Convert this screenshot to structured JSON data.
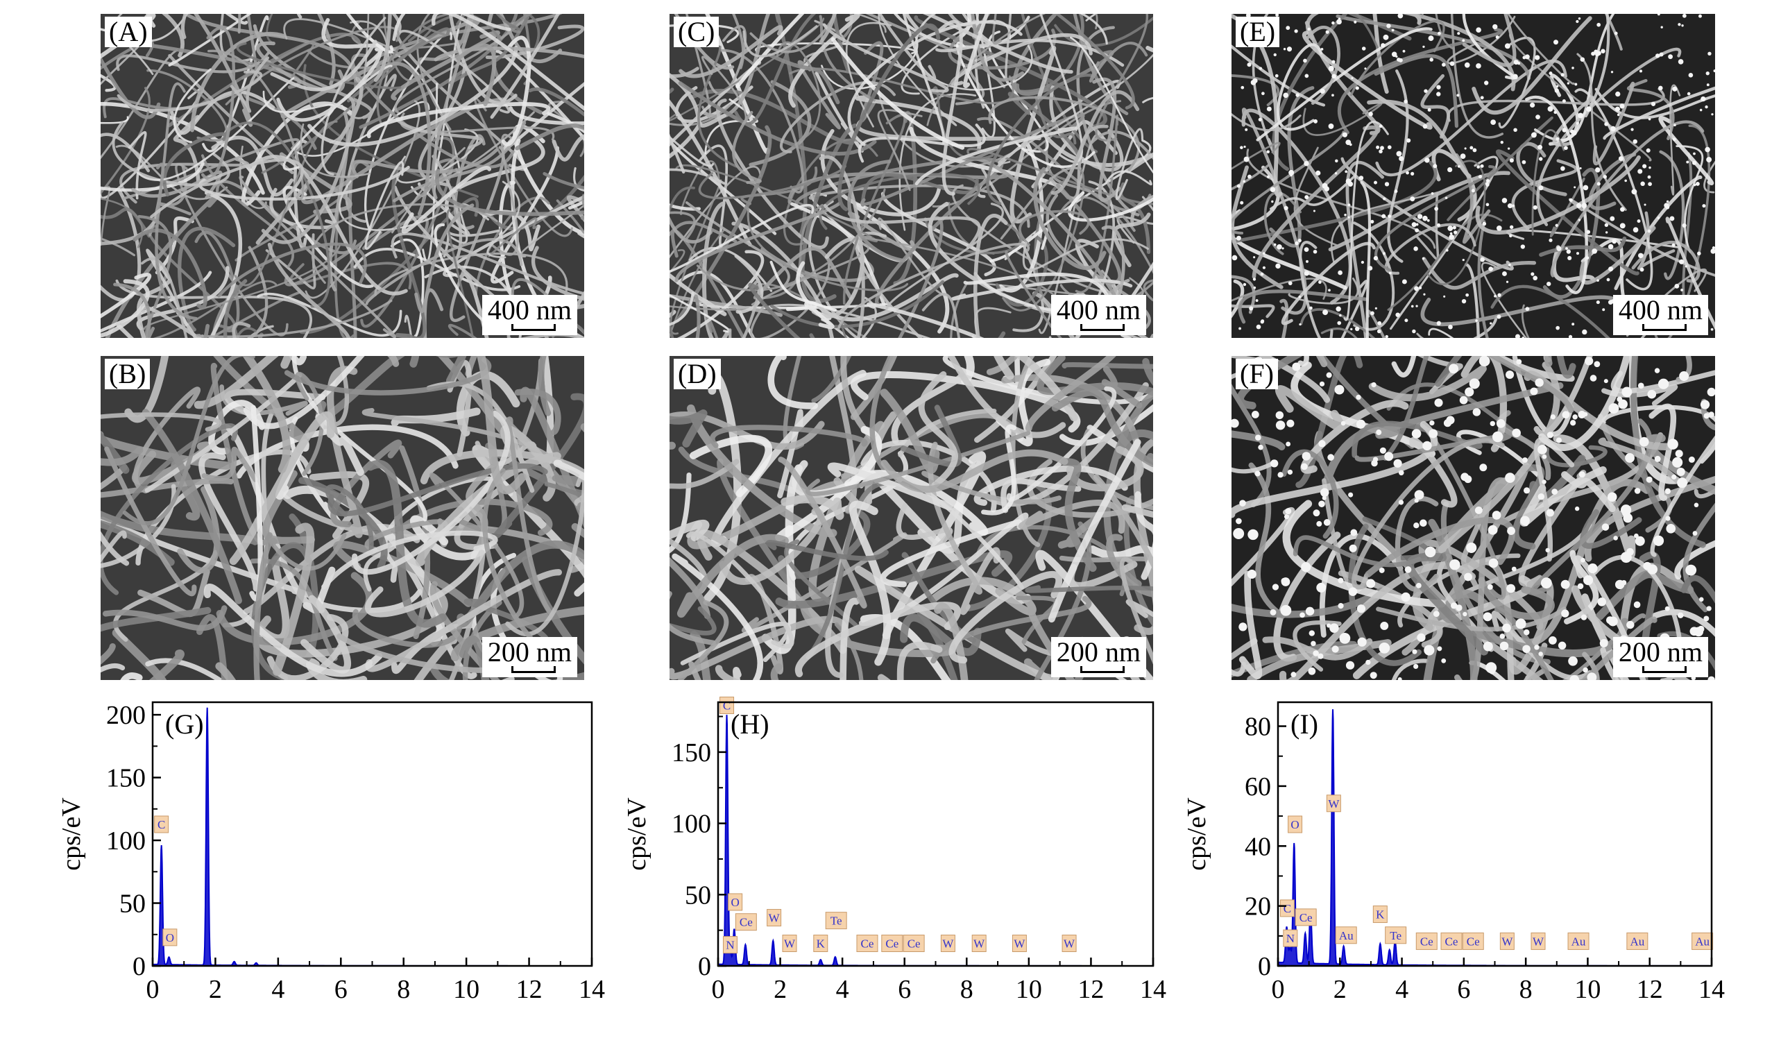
{
  "sem_panels": [
    {
      "label": "(A)",
      "scale": "400 nm",
      "style": "dense"
    },
    {
      "label": "(C)",
      "scale": "400 nm",
      "style": "dense"
    },
    {
      "label": "(E)",
      "scale": "400 nm",
      "style": "sparse"
    },
    {
      "label": "(B)",
      "scale": "200 nm",
      "style": "thick"
    },
    {
      "label": "(D)",
      "scale": "200 nm",
      "style": "thick"
    },
    {
      "label": "(F)",
      "scale": "200 nm",
      "style": "particles"
    }
  ],
  "chart_data": [
    {
      "type": "line",
      "panel_label": "(G)",
      "ylabel": "cps/eV",
      "xlim": [
        0,
        14
      ],
      "ylim": [
        0,
        210
      ],
      "xticks": [
        0,
        2,
        4,
        6,
        8,
        10,
        12,
        14
      ],
      "yticks": [
        0,
        50,
        100,
        150,
        200
      ],
      "color": "#0000cc",
      "peaks": [
        [
          0.28,
          95
        ],
        [
          0.52,
          6
        ],
        [
          1.74,
          205
        ],
        [
          2.6,
          3
        ],
        [
          3.3,
          2
        ]
      ],
      "labels": [
        {
          "text": "C",
          "x": 0.28,
          "y": 105
        },
        {
          "text": "O",
          "x": 0.55,
          "y": 15
        }
      ]
    },
    {
      "type": "line",
      "panel_label": "(H)",
      "ylabel": "cps/eV",
      "xlim": [
        0,
        14
      ],
      "ylim": [
        0,
        185
      ],
      "xticks": [
        0,
        2,
        4,
        6,
        8,
        10,
        12,
        14
      ],
      "yticks": [
        0,
        50,
        100,
        150
      ],
      "color": "#0000cc",
      "peaks": [
        [
          0.28,
          175
        ],
        [
          0.39,
          10
        ],
        [
          0.52,
          25
        ],
        [
          0.88,
          14
        ],
        [
          1.77,
          17
        ],
        [
          3.3,
          4
        ],
        [
          3.77,
          6
        ]
      ],
      "labels": [
        {
          "text": "C",
          "x": 0.28,
          "y": 176
        },
        {
          "text": "O",
          "x": 0.55,
          "y": 38
        },
        {
          "text": "N",
          "x": 0.39,
          "y": 8
        },
        {
          "text": "Ce",
          "x": 0.9,
          "y": 24
        },
        {
          "text": "W",
          "x": 1.8,
          "y": 27
        },
        {
          "text": "W",
          "x": 2.3,
          "y": 9
        },
        {
          "text": "K",
          "x": 3.3,
          "y": 9
        },
        {
          "text": "Te",
          "x": 3.8,
          "y": 25
        },
        {
          "text": "Ce",
          "x": 4.8,
          "y": 9
        },
        {
          "text": "Ce",
          "x": 5.6,
          "y": 9
        },
        {
          "text": "Ce",
          "x": 6.3,
          "y": 9
        },
        {
          "text": "W",
          "x": 7.4,
          "y": 9
        },
        {
          "text": "W",
          "x": 8.4,
          "y": 9
        },
        {
          "text": "W",
          "x": 9.7,
          "y": 9
        },
        {
          "text": "W",
          "x": 11.3,
          "y": 9
        }
      ]
    },
    {
      "type": "line",
      "panel_label": "(I)",
      "ylabel": "cps/eV",
      "xlim": [
        0,
        14
      ],
      "ylim": [
        0,
        88
      ],
      "xticks": [
        0,
        2,
        4,
        6,
        8,
        10,
        12,
        14
      ],
      "yticks": [
        0,
        20,
        40,
        60,
        80
      ],
      "color": "#0000cc",
      "peaks": [
        [
          0.28,
          12
        ],
        [
          0.39,
          5
        ],
        [
          0.52,
          40
        ],
        [
          0.88,
          10
        ],
        [
          1.05,
          18
        ],
        [
          1.77,
          85
        ],
        [
          2.12,
          6
        ],
        [
          3.3,
          7
        ],
        [
          3.6,
          5
        ],
        [
          3.78,
          8
        ]
      ],
      "labels": [
        {
          "text": "O",
          "x": 0.55,
          "y": 44
        },
        {
          "text": "C",
          "x": 0.3,
          "y": 16
        },
        {
          "text": "N",
          "x": 0.4,
          "y": 6
        },
        {
          "text": "Ce",
          "x": 0.9,
          "y": 13
        },
        {
          "text": "W",
          "x": 1.8,
          "y": 51
        },
        {
          "text": "Au",
          "x": 2.2,
          "y": 7
        },
        {
          "text": "K",
          "x": 3.3,
          "y": 14
        },
        {
          "text": "Te",
          "x": 3.8,
          "y": 7
        },
        {
          "text": "Ce",
          "x": 4.8,
          "y": 5
        },
        {
          "text": "Ce",
          "x": 5.6,
          "y": 5
        },
        {
          "text": "Ce",
          "x": 6.3,
          "y": 5
        },
        {
          "text": "W",
          "x": 7.4,
          "y": 5
        },
        {
          "text": "W",
          "x": 8.4,
          "y": 5
        },
        {
          "text": "Au",
          "x": 9.7,
          "y": 5
        },
        {
          "text": "Au",
          "x": 11.6,
          "y": 5
        },
        {
          "text": "Au",
          "x": 13.7,
          "y": 5
        }
      ]
    }
  ]
}
